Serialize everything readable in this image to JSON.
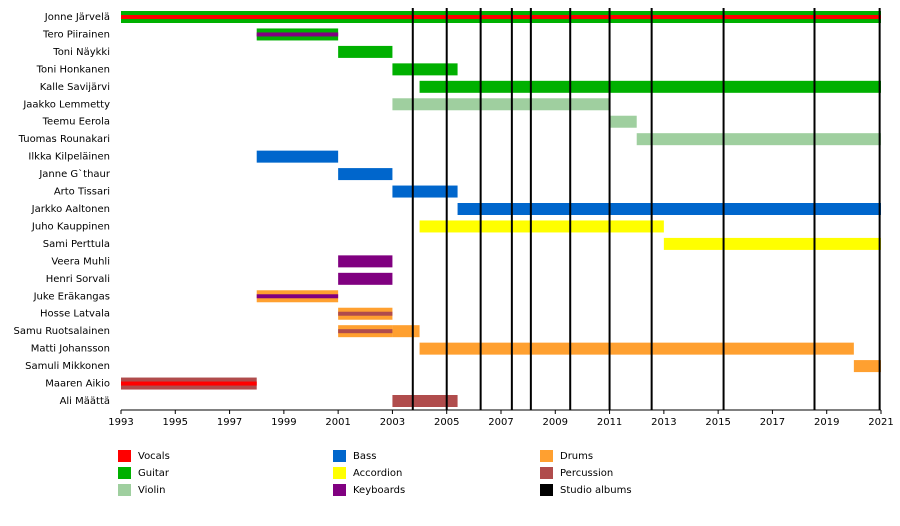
{
  "chart_data": {
    "type": "timeline",
    "xlim": [
      1993,
      2021
    ],
    "xticks": [
      1993,
      1995,
      1997,
      1999,
      2001,
      2003,
      2005,
      2007,
      2009,
      2011,
      2013,
      2015,
      2017,
      2019,
      2021
    ],
    "roles": [
      {
        "name": "Vocals",
        "color": "#ff0000"
      },
      {
        "name": "Guitar",
        "color": "#00b000"
      },
      {
        "name": "Violin",
        "color": "#9fcf9f"
      },
      {
        "name": "Bass",
        "color": "#0066cc"
      },
      {
        "name": "Accordion",
        "color": "#ffff00"
      },
      {
        "name": "Keyboards",
        "color": "#800080"
      },
      {
        "name": "Drums",
        "color": "#ffa030"
      },
      {
        "name": "Percussion",
        "color": "#b04c4c"
      }
    ],
    "albums": {
      "name": "Studio albums",
      "color": "#000000",
      "dates": [
        2003.75,
        2005.0,
        2006.25,
        2007.4,
        2008.1,
        2009.55,
        2011.0,
        2012.55,
        2015.2,
        2018.55,
        2020.95
      ]
    },
    "members": [
      {
        "name": "Jonne Järvelä",
        "periods": [
          {
            "start": 1993,
            "end": 2021,
            "role": "Guitar",
            "stripe": "Vocals"
          }
        ]
      },
      {
        "name": "Tero Piirainen",
        "periods": [
          {
            "start": 1998,
            "end": 2001,
            "role": "Guitar",
            "stripe": "Keyboards"
          }
        ]
      },
      {
        "name": "Toni Näykki",
        "periods": [
          {
            "start": 2001,
            "end": 2003,
            "role": "Guitar"
          }
        ]
      },
      {
        "name": "Toni Honkanen",
        "periods": [
          {
            "start": 2003,
            "end": 2005.4,
            "role": "Guitar"
          }
        ]
      },
      {
        "name": "Kalle Savijärvi",
        "periods": [
          {
            "start": 2004,
            "end": 2021,
            "role": "Guitar"
          }
        ]
      },
      {
        "name": "Jaakko Lemmetty",
        "periods": [
          {
            "start": 2003,
            "end": 2011,
            "role": "Violin"
          }
        ]
      },
      {
        "name": "Teemu Eerola",
        "periods": [
          {
            "start": 2011,
            "end": 2012,
            "role": "Violin"
          }
        ]
      },
      {
        "name": "Tuomas Rounakari",
        "periods": [
          {
            "start": 2012,
            "end": 2021,
            "role": "Violin"
          }
        ]
      },
      {
        "name": "Ilkka Kilpeläinen",
        "periods": [
          {
            "start": 1998,
            "end": 2001,
            "role": "Bass"
          }
        ]
      },
      {
        "name": "Janne G`thaur",
        "periods": [
          {
            "start": 2001,
            "end": 2003,
            "role": "Bass"
          }
        ]
      },
      {
        "name": "Arto Tissari",
        "periods": [
          {
            "start": 2003,
            "end": 2005.4,
            "role": "Bass"
          }
        ]
      },
      {
        "name": "Jarkko Aaltonen",
        "periods": [
          {
            "start": 2005.4,
            "end": 2021,
            "role": "Bass"
          }
        ]
      },
      {
        "name": "Juho Kauppinen",
        "periods": [
          {
            "start": 2004,
            "end": 2013,
            "role": "Accordion"
          }
        ]
      },
      {
        "name": "Sami Perttula",
        "periods": [
          {
            "start": 2013,
            "end": 2021,
            "role": "Accordion"
          }
        ]
      },
      {
        "name": "Veera Muhli",
        "periods": [
          {
            "start": 2001,
            "end": 2003,
            "role": "Keyboards"
          }
        ]
      },
      {
        "name": "Henri Sorvali",
        "periods": [
          {
            "start": 2001,
            "end": 2003,
            "role": "Keyboards"
          }
        ]
      },
      {
        "name": "Juke Eräkangas",
        "periods": [
          {
            "start": 1998,
            "end": 2001,
            "role": "Drums",
            "stripe": "Keyboards"
          }
        ]
      },
      {
        "name": "Hosse Latvala",
        "periods": [
          {
            "start": 2001,
            "end": 2003,
            "role": "Drums",
            "stripe": "Percussion"
          }
        ]
      },
      {
        "name": "Samu Ruotsalainen",
        "periods": [
          {
            "start": 2001,
            "end": 2003,
            "role": "Drums",
            "stripe": "Percussion"
          },
          {
            "start": 2003,
            "end": 2004,
            "role": "Drums"
          }
        ]
      },
      {
        "name": "Matti Johansson",
        "periods": [
          {
            "start": 2004,
            "end": 2020,
            "role": "Drums"
          }
        ]
      },
      {
        "name": "Samuli Mikkonen",
        "periods": [
          {
            "start": 2020,
            "end": 2021,
            "role": "Drums"
          }
        ]
      },
      {
        "name": "Maaren Aikio",
        "periods": [
          {
            "start": 1993,
            "end": 1998,
            "role": "Percussion",
            "stripe": "Vocals"
          }
        ]
      },
      {
        "name": "Ali Määttä",
        "periods": [
          {
            "start": 2003,
            "end": 2005.4,
            "role": "Percussion"
          }
        ]
      }
    ]
  }
}
